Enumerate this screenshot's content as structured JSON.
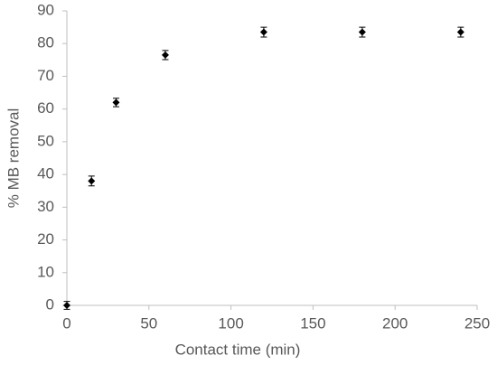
{
  "chart_data": {
    "type": "scatter",
    "x_label": "Contact time (min)",
    "y_label": "% MB removal",
    "x": [
      0,
      15,
      30,
      60,
      120,
      180,
      240
    ],
    "values": [
      0,
      38,
      62,
      76.5,
      83.5,
      83.5,
      83.5
    ],
    "errors": [
      1.2,
      1.5,
      1.3,
      1.4,
      1.5,
      1.5,
      1.5
    ],
    "color": "#000000",
    "xlim": [
      0,
      250
    ],
    "xticks": [
      0,
      50,
      100,
      150,
      200,
      250
    ],
    "ylim": [
      0,
      90
    ],
    "yticks": [
      0,
      10,
      20,
      30,
      40,
      50,
      60,
      70,
      80,
      90
    ],
    "grid": false
  }
}
